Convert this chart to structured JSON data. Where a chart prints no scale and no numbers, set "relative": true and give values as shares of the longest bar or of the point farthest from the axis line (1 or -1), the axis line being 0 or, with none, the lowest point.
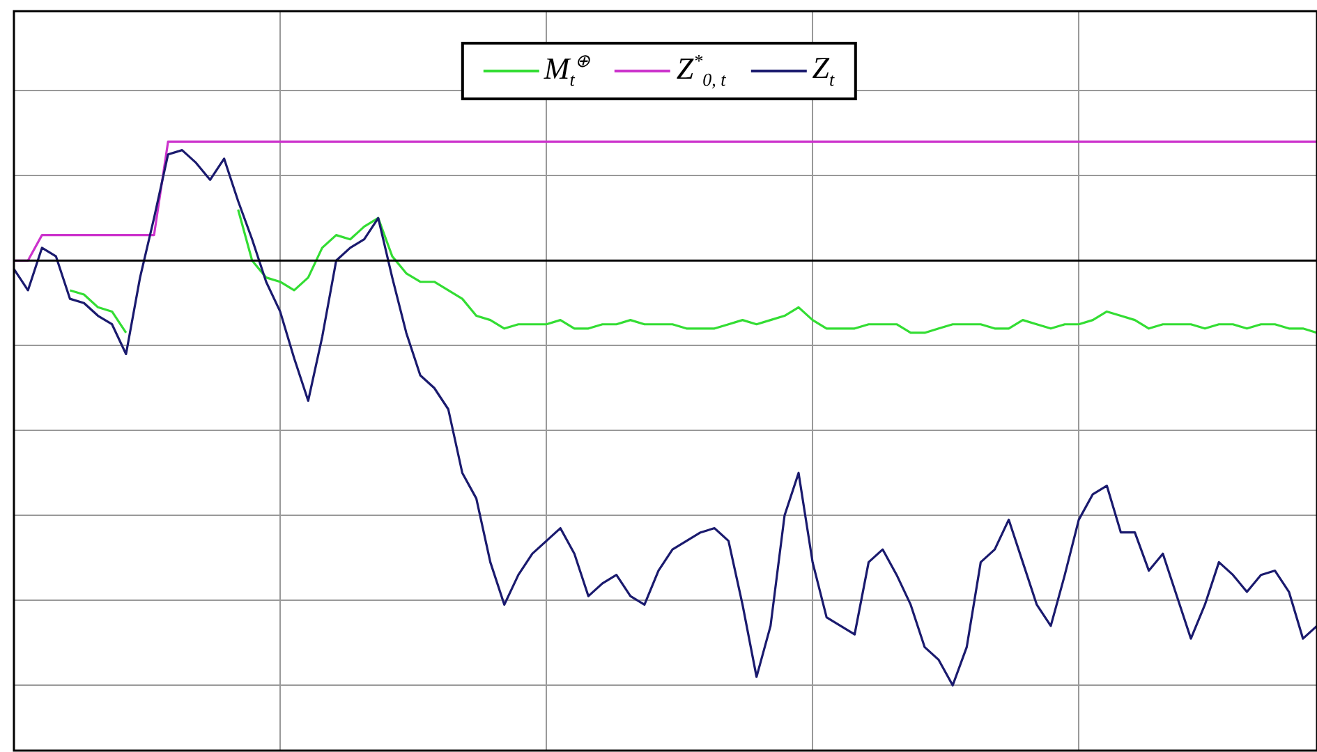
{
  "chart_data": {
    "type": "line",
    "relative": true,
    "grid": true,
    "legend": "top",
    "tick_labels": false,
    "marker": "none",
    "categories": [
      null,
      null,
      null,
      null,
      null,
      null,
      null,
      null,
      null,
      null,
      null,
      null,
      null,
      null,
      null,
      null,
      null,
      null,
      null,
      null,
      null,
      null,
      null,
      null,
      null,
      null,
      null,
      null,
      null,
      null,
      null,
      null,
      null,
      null,
      null,
      null,
      null,
      null,
      null,
      null,
      null,
      null,
      null,
      null,
      null,
      null,
      null,
      null,
      null,
      null,
      null,
      null,
      null,
      null,
      null,
      null,
      null,
      null,
      null,
      null,
      null,
      null,
      null,
      null,
      null,
      null,
      null,
      null,
      null,
      null,
      null,
      null,
      null,
      null,
      null,
      null,
      null,
      null,
      null,
      null,
      null,
      null,
      null,
      null,
      null,
      null,
      null,
      null,
      null,
      null,
      null,
      null,
      null,
      null
    ],
    "ref_lines": [
      {
        "axis": "y",
        "value": 0,
        "color": "#000000"
      }
    ],
    "series": [
      {
        "name": "M$_{t}$$^{⊕}$",
        "color": "#33dd33",
        "values": [
          null,
          null,
          null,
          null,
          -0.07,
          -0.08,
          -0.11,
          -0.12,
          -0.17,
          null,
          null,
          null,
          null,
          null,
          null,
          null,
          0.12,
          0.0,
          -0.04,
          -0.05,
          -0.07,
          -0.04,
          0.03,
          0.06,
          0.05,
          0.08,
          0.1,
          0.01,
          -0.03,
          -0.05,
          -0.05,
          -0.07,
          -0.09,
          -0.13,
          -0.14,
          -0.16,
          -0.15,
          -0.15,
          -0.15,
          -0.14,
          -0.16,
          -0.16,
          -0.15,
          -0.15,
          -0.14,
          -0.15,
          -0.15,
          -0.15,
          -0.16,
          -0.16,
          -0.16,
          -0.15,
          -0.14,
          -0.15,
          -0.14,
          -0.13,
          -0.11,
          -0.14,
          -0.16,
          -0.16,
          -0.16,
          -0.15,
          -0.15,
          -0.15,
          -0.17,
          -0.17,
          -0.16,
          -0.15,
          -0.15,
          -0.15,
          -0.16,
          -0.16,
          -0.14,
          -0.15,
          -0.16,
          -0.15,
          -0.15,
          -0.14,
          -0.12,
          -0.13,
          -0.14,
          -0.16,
          -0.15,
          -0.15,
          -0.15,
          -0.16,
          -0.15,
          -0.15,
          -0.16,
          -0.15,
          -0.15,
          -0.16,
          -0.16,
          -0.17
        ]
      },
      {
        "name": "Z$^{*}$$_{0, t}$",
        "color": "#cc33cc",
        "values": [
          0,
          0,
          0.06,
          0.06,
          0.06,
          0.06,
          0.06,
          0.06,
          0.06,
          0.06,
          0.06,
          0.28,
          0.28,
          0.28,
          0.28,
          0.28,
          0.28,
          0.28,
          0.28,
          0.28,
          0.28,
          0.28,
          0.28,
          0.28,
          0.28,
          0.28,
          0.28,
          0.28,
          0.28,
          0.28,
          0.28,
          0.28,
          0.28,
          0.28,
          0.28,
          0.28,
          0.28,
          0.28,
          0.28,
          0.28,
          0.28,
          0.28,
          0.28,
          0.28,
          0.28,
          0.28,
          0.28,
          0.28,
          0.28,
          0.28,
          0.28,
          0.28,
          0.28,
          0.28,
          0.28,
          0.28,
          0.28,
          0.28,
          0.28,
          0.28,
          0.28,
          0.28,
          0.28,
          0.28,
          0.28,
          0.28,
          0.28,
          0.28,
          0.28,
          0.28,
          0.28,
          0.28,
          0.28,
          0.28,
          0.28,
          0.28,
          0.28,
          0.28,
          0.28,
          0.28,
          0.28,
          0.28,
          0.28,
          0.28,
          0.28,
          0.28,
          0.28,
          0.28,
          0.28,
          0.28,
          0.28,
          0.28,
          0.28,
          0.28
        ]
      },
      {
        "name": "Z$_{t}$",
        "color": "#1a1a6e",
        "values": [
          -0.02,
          -0.07,
          0.03,
          0.01,
          -0.09,
          -0.1,
          -0.13,
          -0.15,
          -0.22,
          -0.04,
          0.1,
          0.25,
          0.26,
          0.23,
          0.19,
          0.24,
          0.14,
          0.05,
          -0.05,
          -0.12,
          -0.23,
          -0.33,
          -0.18,
          0.0,
          0.03,
          0.05,
          0.1,
          -0.04,
          -0.17,
          -0.27,
          -0.3,
          -0.35,
          -0.5,
          -0.56,
          -0.71,
          -0.81,
          -0.74,
          -0.69,
          -0.66,
          -0.63,
          -0.69,
          -0.79,
          -0.76,
          -0.74,
          -0.79,
          -0.81,
          -0.73,
          -0.68,
          -0.66,
          -0.64,
          -0.63,
          -0.66,
          -0.81,
          -0.98,
          -0.86,
          -0.6,
          -0.5,
          -0.71,
          -0.84,
          -0.86,
          -0.88,
          -0.71,
          -0.68,
          -0.74,
          -0.81,
          -0.91,
          -0.94,
          -1,
          -0.91,
          -0.71,
          -0.68,
          -0.61,
          -0.71,
          -0.81,
          -0.86,
          -0.74,
          -0.61,
          -0.55,
          -0.53,
          -0.64,
          -0.64,
          -0.73,
          -0.69,
          -0.79,
          -0.89,
          -0.81,
          -0.71,
          -0.74,
          -0.78,
          -0.74,
          -0.73,
          -0.78,
          -0.89,
          -0.86
        ]
      }
    ]
  }
}
